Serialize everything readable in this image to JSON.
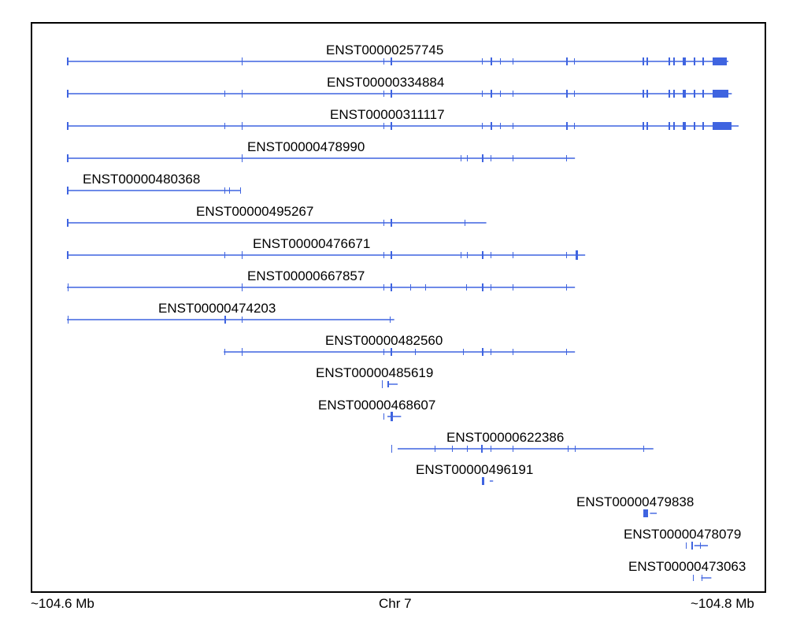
{
  "colors": {
    "transcript": "#3f64e0",
    "frame": "#000000",
    "text": "#000000"
  },
  "axis": {
    "left_label": "~104.6 Mb",
    "center_label": "Chr 7",
    "right_label": "~104.8 Mb"
  },
  "transcripts": [
    {
      "id": "ENST00000257745",
      "name": "ENST00000257745",
      "start": 104600,
      "end": 104794
    },
    {
      "id": "ENST00000334884",
      "name": "ENST00000334884",
      "start": 104600,
      "end": 104795
    },
    {
      "id": "ENST00000311117",
      "name": "ENST00000311117",
      "start": 104600,
      "end": 104797
    },
    {
      "id": "ENST00000478990",
      "name": "ENST00000478990",
      "start": 104600,
      "end": 104749
    },
    {
      "id": "ENST00000480368",
      "name": "ENST00000480368",
      "start": 104600,
      "end": 104651
    },
    {
      "id": "ENST00000495267",
      "name": "ENST00000495267",
      "start": 104600,
      "end": 104723
    },
    {
      "id": "ENST00000476671",
      "name": "ENST00000476671",
      "start": 104600,
      "end": 104752
    },
    {
      "id": "ENST00000667857",
      "name": "ENST00000667857",
      "start": 104600,
      "end": 104749
    },
    {
      "id": "ENST00000474203",
      "name": "ENST00000474203",
      "start": 104600,
      "end": 104696
    },
    {
      "id": "ENST00000482560",
      "name": "ENST00000482560",
      "start": 104646,
      "end": 104749
    },
    {
      "id": "ENST00000485619",
      "name": "ENST00000485619",
      "start": 104694,
      "end": 104697
    },
    {
      "id": "ENST00000468607",
      "name": "ENST00000468607",
      "start": 104694,
      "end": 104698
    },
    {
      "id": "ENST00000622386",
      "name": "ENST00000622386",
      "start": 104697,
      "end": 104772
    },
    {
      "id": "ENST00000496191",
      "name": "ENST00000496191",
      "start": 104724,
      "end": 104725
    },
    {
      "id": "ENST00000479838",
      "name": "ENST00000479838",
      "start": 104771,
      "end": 104773
    },
    {
      "id": "ENST00000478079",
      "name": "ENST00000478079",
      "start": 104784,
      "end": 104788
    },
    {
      "id": "ENST00000473063",
      "name": "ENST00000473063",
      "start": 104786,
      "end": 104789
    }
  ]
}
